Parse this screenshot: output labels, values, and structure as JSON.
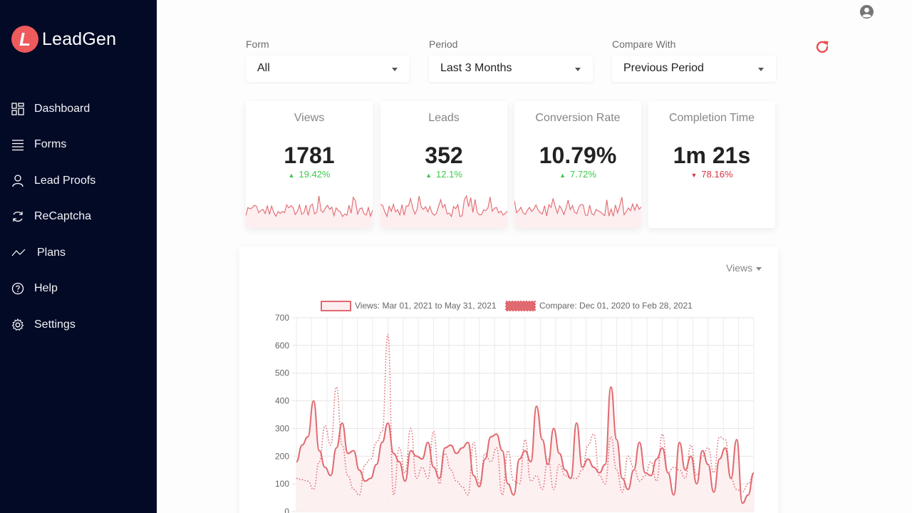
{
  "app": {
    "logo_letter": "L",
    "name": "LeadGen"
  },
  "sidebar": {
    "items": [
      {
        "label": "Dashboard",
        "icon": "dashboard-grid-icon"
      },
      {
        "label": "Forms",
        "icon": "list-lines-icon"
      },
      {
        "label": "Lead Proofs",
        "icon": "user-icon"
      },
      {
        "label": "ReCaptcha",
        "icon": "refresh-cycle-icon"
      },
      {
        "label": "Plans",
        "icon": "trend-line-icon"
      },
      {
        "label": "Help",
        "icon": "question-circle-icon"
      },
      {
        "label": "Settings",
        "icon": "gear-icon"
      }
    ]
  },
  "filters": {
    "form": {
      "label": "Form",
      "value": "All"
    },
    "period": {
      "label": "Period",
      "value": "Last 3 Months"
    },
    "compare": {
      "label": "Compare With",
      "value": "Previous Period"
    }
  },
  "stats": [
    {
      "title": "Views",
      "value": "1781",
      "change": "19.42%",
      "direction": "up"
    },
    {
      "title": "Leads",
      "value": "352",
      "change": "12.1%",
      "direction": "up"
    },
    {
      "title": "Conversion Rate",
      "value": "10.79%",
      "change": "7.72%",
      "direction": "up"
    },
    {
      "title": "Completion Time",
      "value": "1m 21s",
      "change": "78.16%",
      "direction": "down"
    }
  ],
  "colors": {
    "accent": "#ef5a5c",
    "line": "#e06a70",
    "fill": "#fdeef0",
    "up": "#3cc94a",
    "down": "#d9333f",
    "sidebar": "#030a26"
  },
  "chart": {
    "metric_selector": "Views"
  },
  "chart_data": {
    "type": "line",
    "ylim": [
      0,
      700
    ],
    "yticks": [
      0,
      100,
      200,
      300,
      400,
      500,
      600,
      700
    ],
    "grid": true,
    "legend_position": "top",
    "series": [
      {
        "name": "Views: Mar 01, 2021 to May 31, 2021",
        "style": "solid",
        "values": [
          180,
          240,
          270,
          400,
          220,
          160,
          130,
          230,
          320,
          210,
          220,
          150,
          110,
          120,
          170,
          250,
          320,
          210,
          180,
          110,
          220,
          200,
          190,
          250,
          160,
          120,
          230,
          240,
          210,
          230,
          250,
          130,
          90,
          190,
          270,
          280,
          220,
          100,
          60,
          190,
          220,
          180,
          380,
          260,
          170,
          300,
          210,
          150,
          120,
          320,
          160,
          190,
          160,
          140,
          170,
          450,
          260,
          120,
          80,
          150,
          250,
          140,
          130,
          190,
          230,
          140,
          60,
          250,
          150,
          200,
          100,
          220,
          170,
          70,
          190,
          230,
          120,
          260,
          30,
          60,
          140
        ]
      },
      {
        "name": "Compare: Dec 01, 2020 to Feb 28, 2021",
        "style": "dotted",
        "values": [
          120,
          115,
          110,
          80,
          180,
          310,
          240,
          450,
          240,
          130,
          80,
          60,
          170,
          190,
          250,
          290,
          640,
          60,
          230,
          140,
          300,
          120,
          160,
          120,
          290,
          100,
          210,
          150,
          110,
          90,
          60,
          250,
          100,
          210,
          180,
          230,
          60,
          220,
          110,
          100,
          260,
          110,
          130,
          80,
          190,
          80,
          170,
          130,
          120,
          120,
          150,
          240,
          280,
          130,
          100,
          270,
          150,
          70,
          200,
          160,
          110,
          130,
          180,
          110,
          280,
          140,
          160,
          150,
          120,
          240,
          130,
          200,
          230,
          140,
          270,
          260,
          120,
          80,
          70,
          100,
          140
        ]
      }
    ]
  }
}
